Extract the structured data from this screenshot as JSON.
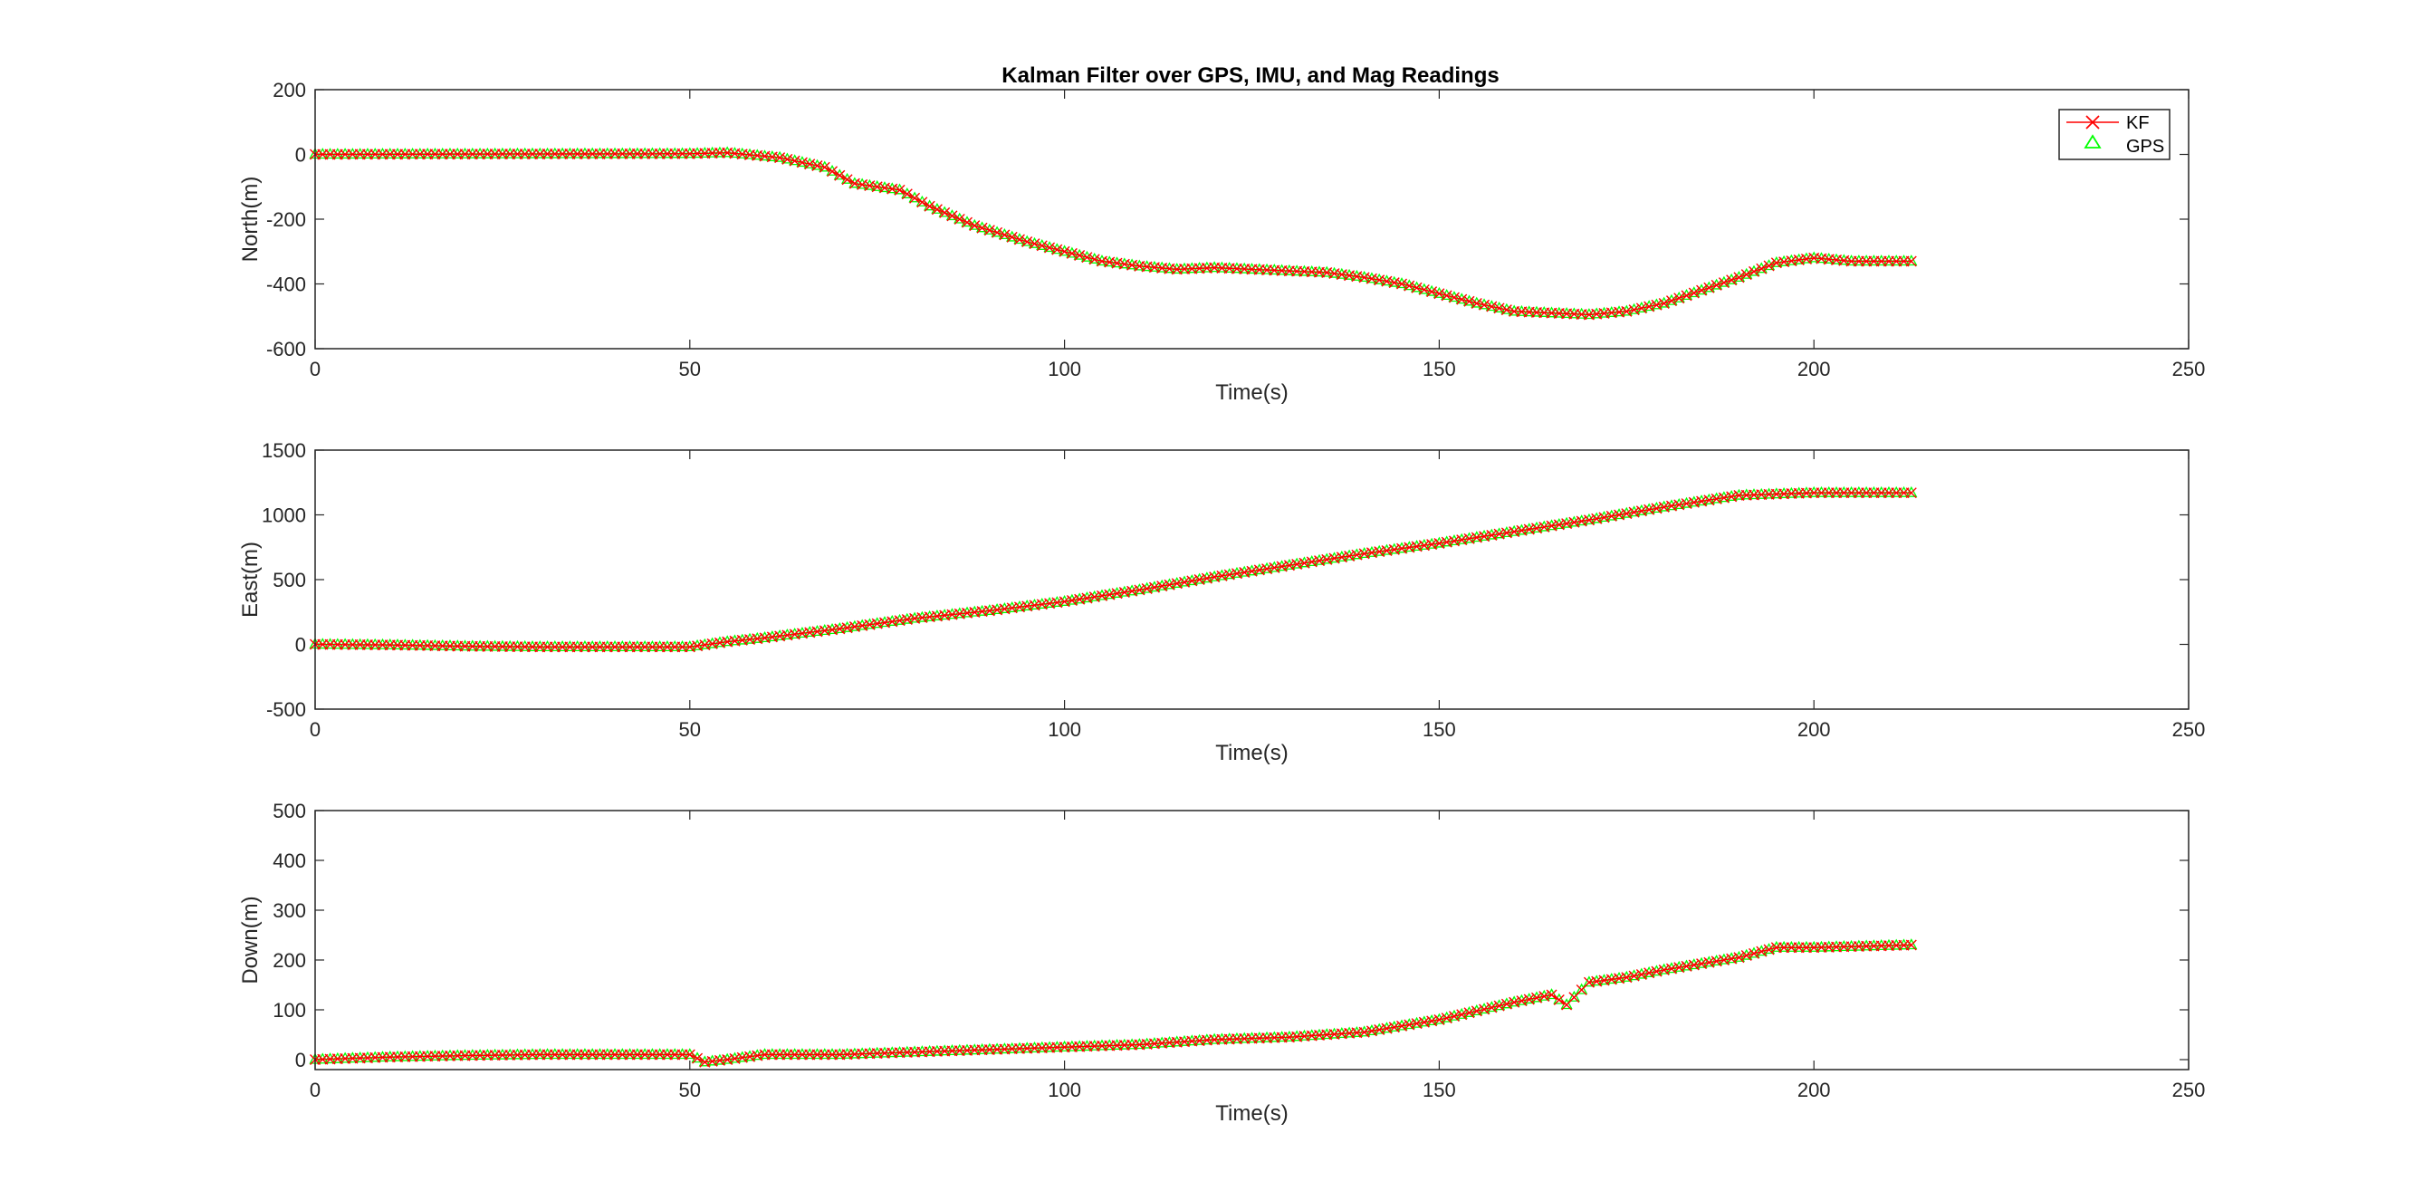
{
  "chart_data": {
    "type": "line",
    "title": "Kalman Filter over GPS, IMU, and Mag Readings",
    "legend": {
      "placement": "top-right",
      "entries": [
        {
          "label": "KF",
          "marker": "x",
          "color": "#ff0000",
          "line": true
        },
        {
          "label": "GPS",
          "marker": "triangle",
          "color": "#00ff00",
          "line": false
        }
      ]
    },
    "series_colors": {
      "kf": "#ff0000",
      "gps": "#00ff00"
    },
    "subplots": [
      {
        "id": "north",
        "ylabel": "North(m)",
        "xlabel": "Time(s)",
        "xlim": [
          0,
          250
        ],
        "ylim": [
          -600,
          200
        ],
        "xticks": [
          0,
          50,
          100,
          150,
          200,
          250
        ],
        "yticks": [
          -600,
          -400,
          -200,
          0,
          200
        ],
        "key_points": [
          [
            0,
            0
          ],
          [
            50,
            2
          ],
          [
            55,
            5
          ],
          [
            62,
            -10
          ],
          [
            68,
            -40
          ],
          [
            72,
            -90
          ],
          [
            78,
            -110
          ],
          [
            82,
            -160
          ],
          [
            88,
            -220
          ],
          [
            95,
            -270
          ],
          [
            100,
            -300
          ],
          [
            105,
            -330
          ],
          [
            110,
            -345
          ],
          [
            115,
            -355
          ],
          [
            120,
            -350
          ],
          [
            125,
            -355
          ],
          [
            130,
            -360
          ],
          [
            135,
            -365
          ],
          [
            140,
            -380
          ],
          [
            145,
            -400
          ],
          [
            150,
            -430
          ],
          [
            155,
            -460
          ],
          [
            160,
            -485
          ],
          [
            165,
            -490
          ],
          [
            170,
            -495
          ],
          [
            175,
            -485
          ],
          [
            180,
            -460
          ],
          [
            185,
            -420
          ],
          [
            190,
            -380
          ],
          [
            195,
            -335
          ],
          [
            200,
            -320
          ],
          [
            205,
            -330
          ],
          [
            213,
            -330
          ]
        ]
      },
      {
        "id": "east",
        "ylabel": "East(m)",
        "xlabel": "Time(s)",
        "xlim": [
          0,
          250
        ],
        "ylim": [
          -500,
          1500
        ],
        "xticks": [
          0,
          50,
          100,
          150,
          200,
          250
        ],
        "yticks": [
          -500,
          0,
          500,
          1000,
          1500
        ],
        "key_points": [
          [
            0,
            0
          ],
          [
            10,
            -5
          ],
          [
            20,
            -15
          ],
          [
            30,
            -20
          ],
          [
            40,
            -20
          ],
          [
            50,
            -20
          ],
          [
            55,
            20
          ],
          [
            60,
            50
          ],
          [
            70,
            120
          ],
          [
            80,
            200
          ],
          [
            90,
            260
          ],
          [
            100,
            330
          ],
          [
            110,
            420
          ],
          [
            120,
            520
          ],
          [
            130,
            610
          ],
          [
            140,
            700
          ],
          [
            150,
            780
          ],
          [
            160,
            870
          ],
          [
            170,
            960
          ],
          [
            180,
            1060
          ],
          [
            190,
            1150
          ],
          [
            200,
            1170
          ],
          [
            213,
            1170
          ]
        ]
      },
      {
        "id": "down",
        "ylabel": "Down(m)",
        "xlabel": "Time(s)",
        "xlim": [
          0,
          250
        ],
        "ylim": [
          -20,
          500
        ],
        "xticks": [
          0,
          50,
          100,
          150,
          200,
          250
        ],
        "yticks": [
          0,
          100,
          200,
          300,
          400,
          500
        ],
        "key_points": [
          [
            0,
            0
          ],
          [
            10,
            5
          ],
          [
            20,
            8
          ],
          [
            30,
            10
          ],
          [
            40,
            10
          ],
          [
            50,
            10
          ],
          [
            52,
            -5
          ],
          [
            55,
            0
          ],
          [
            60,
            10
          ],
          [
            70,
            10
          ],
          [
            80,
            15
          ],
          [
            90,
            20
          ],
          [
            100,
            25
          ],
          [
            110,
            30
          ],
          [
            120,
            40
          ],
          [
            130,
            45
          ],
          [
            140,
            55
          ],
          [
            150,
            80
          ],
          [
            160,
            115
          ],
          [
            165,
            130
          ],
          [
            167,
            110
          ],
          [
            170,
            155
          ],
          [
            175,
            165
          ],
          [
            180,
            180
          ],
          [
            190,
            205
          ],
          [
            195,
            225
          ],
          [
            200,
            225
          ],
          [
            213,
            230
          ]
        ]
      }
    ]
  }
}
